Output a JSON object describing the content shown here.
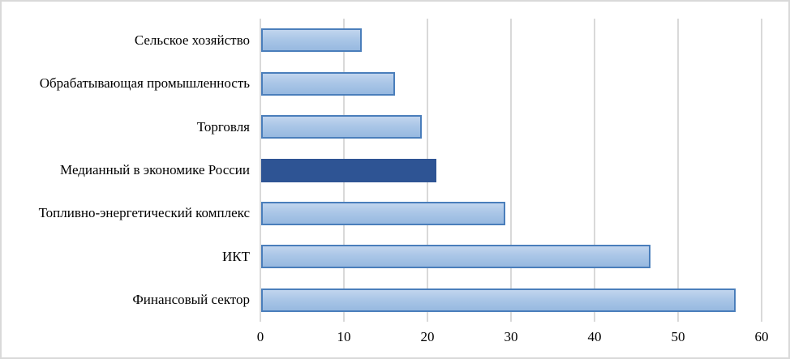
{
  "chart_data": {
    "type": "bar",
    "orientation": "horizontal",
    "title": "",
    "xlabel": "",
    "ylabel": "",
    "categories": [
      "Сельское хозяйство",
      "Обрабатывающая промышленность",
      "Торговля",
      "Медианный в экономике России",
      "Топливно-энергетический комплекс",
      "ИКТ",
      "Финансовый сектор"
    ],
    "values": [
      12,
      16,
      19.2,
      21,
      29.2,
      46.6,
      56.8
    ],
    "highlight_index": 3,
    "highlight_category": "Медианный в экономике России",
    "xlim": [
      0,
      60
    ],
    "x_ticks": [
      0,
      10,
      20,
      30,
      40,
      50,
      60
    ],
    "grid": "vertical-only",
    "legend_position": "none",
    "colors": {
      "bar_fill_top": "#c1d5ee",
      "bar_fill_bottom": "#97b9e0",
      "bar_border": "#4a7ebb",
      "highlight_fill": "#2e5494",
      "gridline": "#d9d9d9",
      "figure_border": "#d9d9d9",
      "text": "#000000",
      "background": "#ffffff"
    }
  }
}
